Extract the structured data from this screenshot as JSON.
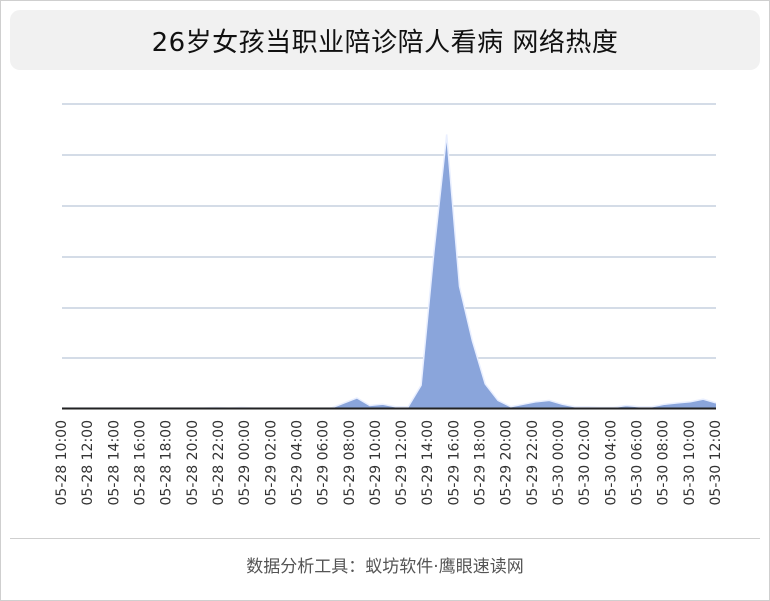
{
  "title": "26岁女孩当职业陪诊陪人看病 网络热度",
  "footer": "数据分析工具：蚁坊软件·鹰眼速读网",
  "colors": {
    "area_fill": "#8aa5db",
    "area_stroke": "#e9efff",
    "grid": "#a9b8cf",
    "axis": "#222222"
  },
  "chart_data": {
    "type": "area",
    "title": "26岁女孩当职业陪诊陪人看病 网络热度",
    "xlabel": "",
    "ylabel": "",
    "grid": true,
    "y_tick_labels_shown": false,
    "legend": "none",
    "x_tick_labels": [
      "05-28 10:00",
      "05-28 12:00",
      "05-28 14:00",
      "05-28 16:00",
      "05-28 18:00",
      "05-28 20:00",
      "05-28 22:00",
      "05-29 00:00",
      "05-29 02:00",
      "05-29 04:00",
      "05-29 06:00",
      "05-29 08:00",
      "05-29 10:00",
      "05-29 12:00",
      "05-29 14:00",
      "05-29 16:00",
      "05-29 18:00",
      "05-29 20:00",
      "05-29 22:00",
      "05-30 00:00",
      "05-30 02:00",
      "05-30 04:00",
      "05-30 06:00",
      "05-30 08:00",
      "05-30 10:00",
      "05-30 12:00"
    ],
    "x": [
      "05-28 10:00",
      "05-28 11:00",
      "05-28 12:00",
      "05-28 13:00",
      "05-28 14:00",
      "05-28 15:00",
      "05-28 16:00",
      "05-28 17:00",
      "05-28 18:00",
      "05-28 19:00",
      "05-28 20:00",
      "05-28 21:00",
      "05-28 22:00",
      "05-28 23:00",
      "05-29 00:00",
      "05-29 01:00",
      "05-29 02:00",
      "05-29 03:00",
      "05-29 04:00",
      "05-29 05:00",
      "05-29 06:00",
      "05-29 07:00",
      "05-29 08:00",
      "05-29 09:00",
      "05-29 10:00",
      "05-29 11:00",
      "05-29 12:00",
      "05-29 13:00",
      "05-29 14:00",
      "05-29 15:00",
      "05-29 16:00",
      "05-29 17:00",
      "05-29 18:00",
      "05-29 19:00",
      "05-29 20:00",
      "05-29 21:00",
      "05-29 22:00",
      "05-29 23:00",
      "05-30 00:00",
      "05-30 01:00",
      "05-30 02:00",
      "05-30 03:00",
      "05-30 04:00",
      "05-30 05:00",
      "05-30 06:00",
      "05-30 07:00",
      "05-30 08:00",
      "05-30 09:00",
      "05-30 10:00",
      "05-30 11:00",
      "05-30 12:00",
      "05-30 13:00"
    ],
    "values": [
      0,
      0,
      0,
      0,
      0,
      0,
      0,
      0,
      0,
      0,
      0,
      0,
      0.5,
      0,
      0.5,
      0,
      0,
      0,
      0,
      0,
      0,
      0,
      4,
      8,
      2,
      3,
      1,
      1,
      18,
      123,
      216,
      96,
      53,
      19,
      6,
      1,
      3,
      5,
      6,
      3,
      1,
      1,
      0.5,
      0.5,
      2,
      1,
      1,
      3,
      4,
      5,
      7,
      4
    ],
    "ylim": [
      0,
      216
    ]
  }
}
